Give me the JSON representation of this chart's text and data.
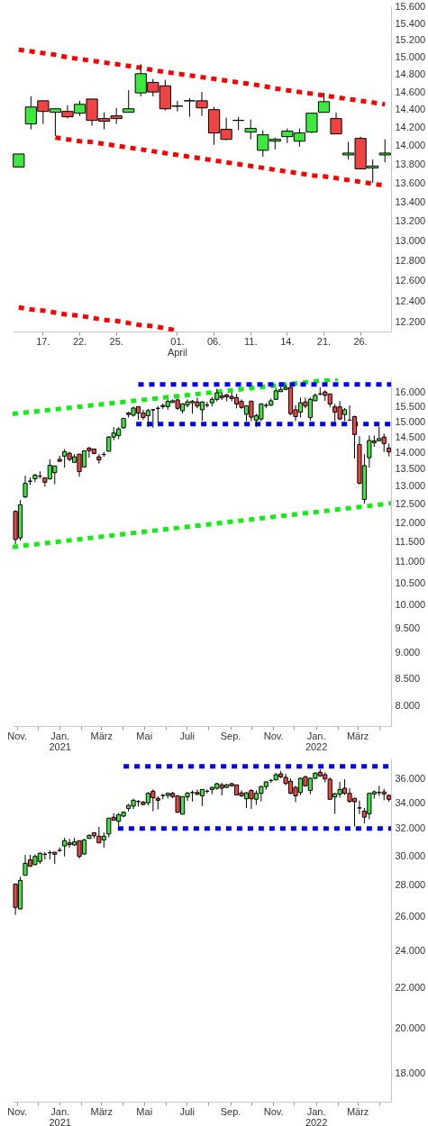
{
  "chart_data": [
    {
      "type": "candlestick",
      "categories": [
        null,
        null,
        "17.",
        null,
        null,
        "22.",
        null,
        null,
        "25.",
        null,
        null,
        null,
        null,
        "01.\nApril",
        null,
        null,
        "06.",
        null,
        null,
        "11.",
        null,
        null,
        "14.",
        null,
        null,
        "21.",
        null,
        null,
        "26.",
        null,
        null
      ],
      "ohlc": [
        [
          13770,
          13910,
          13770,
          13910
        ],
        [
          14240,
          14550,
          14180,
          14430
        ],
        [
          14500,
          14500,
          14240,
          14380
        ],
        [
          14370,
          14410,
          14110,
          14410
        ],
        [
          14380,
          14450,
          14300,
          14320
        ],
        [
          14360,
          14500,
          14330,
          14460
        ],
        [
          14520,
          14520,
          14220,
          14280
        ],
        [
          14300,
          14370,
          14180,
          14270
        ],
        [
          14330,
          14420,
          14240,
          14300
        ],
        [
          14370,
          14620,
          14370,
          14410
        ],
        [
          14590,
          14920,
          14550,
          14810
        ],
        [
          14710,
          14750,
          14550,
          14600
        ],
        [
          14670,
          14740,
          14390,
          14410
        ],
        [
          14440,
          14500,
          14380,
          14440
        ],
        [
          14500,
          14530,
          14320,
          14500
        ],
        [
          14500,
          14600,
          14330,
          14420
        ],
        [
          14400,
          14430,
          14010,
          14140
        ],
        [
          14180,
          14310,
          14060,
          14070
        ],
        [
          14280,
          14320,
          14170,
          14280
        ],
        [
          14150,
          14290,
          14070,
          14190
        ],
        [
          13950,
          14170,
          13880,
          14120
        ],
        [
          14050,
          14090,
          13960,
          14070
        ],
        [
          14100,
          14190,
          14030,
          14160
        ],
        [
          14050,
          14190,
          13990,
          14140
        ],
        [
          14150,
          14360,
          14140,
          14360
        ],
        [
          14370,
          14590,
          14370,
          14490
        ],
        [
          14300,
          14370,
          14130,
          14130
        ],
        [
          13900,
          14040,
          13850,
          13920
        ],
        [
          14080,
          14100,
          13750,
          13750
        ],
        [
          13760,
          13850,
          13600,
          13780
        ],
        [
          13900,
          14070,
          13820,
          13920
        ]
      ],
      "colors": [
        "#3ee83e",
        "#3ee83e",
        "#ee4444",
        "#3ee83e",
        "#ee4444",
        "#3ee83e",
        "#ee4444",
        "#ee4444",
        "#ee4444",
        "#3ee83e",
        "#3ee83e",
        "#ee4444",
        "#ee4444",
        "#000000",
        "#000000",
        "#ee4444",
        "#ee4444",
        "#ee4444",
        "#000000",
        "#3ee83e",
        "#3ee83e",
        "#3ee83e",
        "#3ee83e",
        "#3ee83e",
        "#3ee83e",
        "#3ee83e",
        "#ee4444",
        "#3ee83e",
        "#ee4444",
        "#3ee83e",
        "#3ee83e"
      ],
      "ylim": [
        12110,
        15610
      ],
      "yticks": [
        {
          "value": 12200,
          "label": "12.200"
        },
        {
          "value": 12400,
          "label": "12.400"
        },
        {
          "value": 12600,
          "label": "12.600"
        },
        {
          "value": 12800,
          "label": "12.800"
        },
        {
          "value": 13000,
          "label": "13.000"
        },
        {
          "value": 13200,
          "label": "13.200"
        },
        {
          "value": 13400,
          "label": "13.400"
        },
        {
          "value": 13600,
          "label": "13.600"
        },
        {
          "value": 13800,
          "label": "13.800"
        },
        {
          "value": 14000,
          "label": "14.000"
        },
        {
          "value": 14200,
          "label": "14.200"
        },
        {
          "value": 14400,
          "label": "14.400"
        },
        {
          "value": 14600,
          "label": "14.600"
        },
        {
          "value": 14800,
          "label": "14.800"
        },
        {
          "value": 15000,
          "label": "15.000"
        },
        {
          "value": 15200,
          "label": "15.200"
        },
        {
          "value": 15400,
          "label": "15.400"
        },
        {
          "value": 15600,
          "label": "15.600"
        }
      ],
      "log": true,
      "series": [
        {
          "type": "line",
          "values": [
            15090,
            15070,
            15050,
            15030,
            15000,
            14980,
            14960,
            14940,
            14920,
            14900,
            14880,
            14850,
            14830,
            14810,
            14790,
            14770,
            14750,
            14730,
            14710,
            14690,
            14670,
            14640,
            14620,
            14600,
            14580,
            14560,
            14540,
            14520,
            14500,
            14480,
            14460
          ],
          "color": "#ff0000",
          "line_style": "dotted"
        },
        {
          "type": "line",
          "values": [
            null,
            null,
            null,
            14090,
            14070,
            14050,
            14040,
            14020,
            14000,
            13980,
            13960,
            13940,
            13920,
            13900,
            13880,
            13860,
            13840,
            13820,
            13800,
            13780,
            13760,
            13740,
            13720,
            13700,
            13680,
            13670,
            13650,
            13630,
            13610,
            13590,
            13570
          ],
          "color": "#ff0000",
          "line_style": "dotted"
        },
        {
          "type": "line",
          "values": [
            12340,
            12320,
            12310,
            12290,
            12270,
            12260,
            12240,
            12220,
            12210,
            12190,
            12170,
            12160,
            12140,
            12120,
            null,
            null,
            null,
            null,
            null,
            null,
            null,
            null,
            null,
            null,
            null,
            null,
            null,
            null,
            null,
            null,
            null
          ],
          "color": "#ff0000",
          "line_style": "dotted"
        }
      ]
    },
    {
      "type": "candlestick",
      "x": [
        "2020-10-30",
        "2020-11-06",
        "2020-11-13",
        "2020-11-20",
        "2020-11-27",
        "2020-12-04",
        "2020-12-11",
        "2020-12-18",
        "2020-12-25",
        "2021-01-01",
        "2021-01-08",
        "2021-01-15",
        "2021-01-22",
        "2021-01-29",
        "2021-02-05",
        "2021-02-12",
        "2021-02-19",
        "2021-02-26",
        "2021-03-05",
        "2021-03-12",
        "2021-03-19",
        "2021-03-26",
        "2021-04-02",
        "2021-04-09",
        "2021-04-16",
        "2021-04-23",
        "2021-04-30",
        "2021-05-07",
        "2021-05-14",
        "2021-05-21",
        "2021-05-28",
        "2021-06-04",
        "2021-06-11",
        "2021-06-18",
        "2021-06-25",
        "2021-07-02",
        "2021-07-09",
        "2021-07-16",
        "2021-07-23",
        "2021-07-30",
        "2021-08-06",
        "2021-08-13",
        "2021-08-20",
        "2021-08-27",
        "2021-09-03",
        "2021-09-10",
        "2021-09-17",
        "2021-09-24",
        "2021-10-01",
        "2021-10-08",
        "2021-10-15",
        "2021-10-22",
        "2021-10-29",
        "2021-11-05",
        "2021-11-12",
        "2021-11-19",
        "2021-11-26",
        "2021-12-03",
        "2021-12-10",
        "2021-12-17",
        "2021-12-24",
        "2021-12-31",
        "2022-01-07",
        "2022-01-14",
        "2022-01-21",
        "2022-01-28",
        "2022-02-04",
        "2022-02-11",
        "2022-02-18",
        "2022-02-25",
        "2022-03-04",
        "2022-03-11",
        "2022-03-18",
        "2022-03-25",
        "2022-04-01",
        "2022-04-08",
        "2022-04-15"
      ],
      "ohlc": [
        [
          12300,
          12330,
          11440,
          11560
        ],
        [
          11600,
          12610,
          11530,
          12480
        ],
        [
          12700,
          13310,
          12670,
          13090
        ],
        [
          13150,
          13260,
          13040,
          13150
        ],
        [
          13220,
          13360,
          13120,
          13330
        ],
        [
          13300,
          13440,
          13220,
          13300
        ],
        [
          13250,
          13250,
          12990,
          13120
        ],
        [
          13220,
          13800,
          13190,
          13620
        ],
        [
          13400,
          13600,
          13060,
          13600
        ],
        [
          13800,
          13910,
          13740,
          13740
        ],
        [
          13900,
          14120,
          13550,
          14040
        ],
        [
          13990,
          14030,
          13740,
          13800
        ],
        [
          13710,
          13960,
          13690,
          13880
        ],
        [
          13960,
          13960,
          13280,
          13430
        ],
        [
          13570,
          14080,
          13550,
          14060
        ],
        [
          14150,
          14180,
          13850,
          14070
        ],
        [
          14120,
          14120,
          13960,
          13980
        ],
        [
          13880,
          13960,
          13670,
          13780
        ],
        [
          13950,
          14030,
          13880,
          13950
        ],
        [
          14050,
          14530,
          14040,
          14500
        ],
        [
          14500,
          14820,
          14400,
          14630
        ],
        [
          14550,
          14820,
          14430,
          14760
        ],
        [
          14800,
          15110,
          14770,
          15110
        ],
        [
          15290,
          15340,
          15140,
          15240
        ],
        [
          15220,
          15510,
          15170,
          15460
        ],
        [
          15510,
          15510,
          15070,
          15290
        ],
        [
          15290,
          15400,
          15070,
          15140
        ],
        [
          15200,
          15430,
          14820,
          15370
        ],
        [
          15400,
          15430,
          14800,
          15400
        ],
        [
          15450,
          15530,
          14970,
          15450
        ],
        [
          15510,
          15610,
          15430,
          15550
        ],
        [
          15510,
          15760,
          15400,
          15690
        ],
        [
          15650,
          15760,
          15640,
          15710
        ],
        [
          15740,
          15790,
          15400,
          15450
        ],
        [
          15370,
          15630,
          15270,
          15600
        ],
        [
          15560,
          15760,
          15480,
          15670
        ],
        [
          15640,
          15740,
          15270,
          15690
        ],
        [
          15670,
          15820,
          15450,
          15530
        ],
        [
          15400,
          15690,
          15030,
          15670
        ],
        [
          15560,
          15670,
          15480,
          15560
        ],
        [
          15640,
          15840,
          15510,
          15760
        ],
        [
          15760,
          16130,
          15690,
          15990
        ],
        [
          15890,
          16000,
          15740,
          15820
        ],
        [
          15920,
          15950,
          15690,
          15850
        ],
        [
          15860,
          16000,
          15690,
          15790
        ],
        [
          15820,
          15950,
          15450,
          15600
        ],
        [
          15690,
          15760,
          15430,
          15480
        ],
        [
          15250,
          15560,
          15020,
          15530
        ],
        [
          15700,
          15700,
          15020,
          15150
        ],
        [
          15050,
          15270,
          14820,
          15200
        ],
        [
          15090,
          15630,
          15020,
          15600
        ],
        [
          15550,
          15630,
          15450,
          15550
        ],
        [
          15560,
          15790,
          15530,
          15710
        ],
        [
          15760,
          16160,
          15740,
          16060
        ],
        [
          16030,
          16210,
          16030,
          16110
        ],
        [
          16110,
          16290,
          16080,
          16180
        ],
        [
          16180,
          16240,
          15220,
          15270
        ],
        [
          15400,
          15560,
          15020,
          15170
        ],
        [
          15320,
          15820,
          15140,
          15640
        ],
        [
          15670,
          15820,
          15450,
          15530
        ],
        [
          15140,
          15820,
          15030,
          15760
        ],
        [
          15710,
          15970,
          15710,
          15900
        ],
        [
          15950,
          16180,
          15900,
          15950
        ],
        [
          16020,
          16080,
          15710,
          15900
        ],
        [
          15950,
          15950,
          15480,
          15600
        ],
        [
          15500,
          15600,
          15000,
          15320
        ],
        [
          15500,
          15700,
          15050,
          15090
        ],
        [
          15240,
          15460,
          15020,
          15400
        ],
        [
          15050,
          15550,
          15050,
          15050
        ],
        [
          15170,
          15200,
          13830,
          14580
        ],
        [
          14260,
          14530,
          13060,
          13090
        ],
        [
          12630,
          13960,
          12510,
          13610
        ],
        [
          13850,
          14550,
          13550,
          14390
        ],
        [
          14380,
          14550,
          14190,
          14320
        ],
        [
          14380,
          14840,
          14370,
          14450
        ],
        [
          14500,
          14610,
          14030,
          14290
        ],
        [
          14150,
          14290,
          13890,
          14030
        ]
      ],
      "colors": [
        "#ee4444",
        "#3ee83e",
        "#3ee83e",
        "#000000",
        "#3ee83e",
        "#000000",
        "#ee4444",
        "#3ee83e",
        "#3ee83e",
        "#ee4444",
        "#3ee83e",
        "#ee4444",
        "#3ee83e",
        "#ee4444",
        "#3ee83e",
        "#ee4444",
        "#ee4444",
        "#ee4444",
        "#000000",
        "#3ee83e",
        "#3ee83e",
        "#3ee83e",
        "#3ee83e",
        "#ee4444",
        "#3ee83e",
        "#ee4444",
        "#ee4444",
        "#3ee83e",
        "#000000",
        "#000000",
        "#3ee83e",
        "#3ee83e",
        "#3ee83e",
        "#ee4444",
        "#3ee83e",
        "#3ee83e",
        "#3ee83e",
        "#ee4444",
        "#3ee83e",
        "#000000",
        "#3ee83e",
        "#3ee83e",
        "#ee4444",
        "#ee4444",
        "#ee4444",
        "#ee4444",
        "#ee4444",
        "#3ee83e",
        "#ee4444",
        "#3ee83e",
        "#3ee83e",
        "#000000",
        "#3ee83e",
        "#3ee83e",
        "#3ee83e",
        "#3ee83e",
        "#ee4444",
        "#ee4444",
        "#3ee83e",
        "#ee4444",
        "#3ee83e",
        "#3ee83e",
        "#000000",
        "#ee4444",
        "#ee4444",
        "#ee4444",
        "#ee4444",
        "#3ee83e",
        "#000000",
        "#ee4444",
        "#ee4444",
        "#3ee83e",
        "#3ee83e",
        "#ee4444",
        "#3ee83e",
        "#ee4444",
        "#ee4444"
      ],
      "xlim": [
        "2020-10-26",
        "2022-04-18"
      ],
      "xticks": [
        {
          "value": "2020-11-01",
          "label": "Nov."
        },
        {
          "value": "2020-12-01",
          "label": null
        },
        {
          "value": "2021-01-01",
          "label": "Jan.\n2021"
        },
        {
          "value": "2021-02-01",
          "label": null
        },
        {
          "value": "2021-03-01",
          "label": "März"
        },
        {
          "value": "2021-04-01",
          "label": null
        },
        {
          "value": "2021-05-01",
          "label": "Mai"
        },
        {
          "value": "2021-06-01",
          "label": null
        },
        {
          "value": "2021-07-01",
          "label": "Juli"
        },
        {
          "value": "2021-08-01",
          "label": null
        },
        {
          "value": "2021-09-01",
          "label": "Sep."
        },
        {
          "value": "2021-10-01",
          "label": null
        },
        {
          "value": "2021-11-01",
          "label": "Nov."
        },
        {
          "value": "2021-12-01",
          "label": null
        },
        {
          "value": "2022-01-01",
          "label": "Jan.\n2022"
        },
        {
          "value": "2022-02-01",
          "label": null
        },
        {
          "value": "2022-03-01",
          "label": "März"
        },
        {
          "value": "2022-04-01",
          "label": null
        }
      ],
      "ylim": [
        7650,
        16510
      ],
      "yticks": [
        {
          "value": 8000,
          "label": "8.000"
        },
        {
          "value": 8500,
          "label": "8.500"
        },
        {
          "value": 9000,
          "label": "9.000"
        },
        {
          "value": 9500,
          "label": "9.500"
        },
        {
          "value": 10000,
          "label": "10.000"
        },
        {
          "value": 10500,
          "label": "10.500"
        },
        {
          "value": 11000,
          "label": "11.000"
        },
        {
          "value": 11500,
          "label": "11.500"
        },
        {
          "value": 12000,
          "label": "12.000"
        },
        {
          "value": 12500,
          "label": "12.500"
        },
        {
          "value": 13000,
          "label": "13.000"
        },
        {
          "value": 13500,
          "label": "13.500"
        },
        {
          "value": 14000,
          "label": "14.000"
        },
        {
          "value": 14500,
          "label": "14.500"
        },
        {
          "value": 15000,
          "label": "15.000"
        },
        {
          "value": 15500,
          "label": "15.500"
        },
        {
          "value": 16000,
          "label": "16.000"
        }
      ],
      "log": true,
      "series": [
        {
          "type": "line",
          "x": [
            "2020-10-26",
            "2022-02-01"
          ],
          "values": [
            15260,
            16490
          ],
          "color": "#11ee11",
          "line_style": "dotted"
        },
        {
          "type": "line",
          "x": [
            "2020-10-26",
            "2022-04-18"
          ],
          "values": [
            11370,
            12520
          ],
          "color": "#11ee11",
          "line_style": "dotted"
        },
        {
          "type": "line",
          "x": [
            "2021-04-23",
            "2022-04-18"
          ],
          "values": [
            16290,
            16290
          ],
          "color": "#0000ff",
          "line_style": "dotted"
        },
        {
          "type": "line",
          "x": [
            "2021-04-20",
            "2022-04-18"
          ],
          "values": [
            14920,
            14920
          ],
          "color": "#0000ff",
          "line_style": "dotted"
        }
      ]
    },
    {
      "type": "candlestick",
      "x": [
        "2020-10-30",
        "2020-11-06",
        "2020-11-13",
        "2020-11-20",
        "2020-11-27",
        "2020-12-04",
        "2020-12-11",
        "2020-12-18",
        "2020-12-25",
        "2021-01-01",
        "2021-01-08",
        "2021-01-15",
        "2021-01-22",
        "2021-01-29",
        "2021-02-05",
        "2021-02-12",
        "2021-02-19",
        "2021-02-26",
        "2021-03-05",
        "2021-03-12",
        "2021-03-19",
        "2021-03-26",
        "2021-04-02",
        "2021-04-09",
        "2021-04-16",
        "2021-04-23",
        "2021-04-30",
        "2021-05-07",
        "2021-05-14",
        "2021-05-21",
        "2021-05-28",
        "2021-06-04",
        "2021-06-11",
        "2021-06-18",
        "2021-06-25",
        "2021-07-02",
        "2021-07-09",
        "2021-07-16",
        "2021-07-23",
        "2021-07-30",
        "2021-08-06",
        "2021-08-13",
        "2021-08-20",
        "2021-08-27",
        "2021-09-03",
        "2021-09-10",
        "2021-09-17",
        "2021-09-24",
        "2021-10-01",
        "2021-10-08",
        "2021-10-15",
        "2021-10-22",
        "2021-10-29",
        "2021-11-05",
        "2021-11-12",
        "2021-11-19",
        "2021-11-26",
        "2021-12-03",
        "2021-12-10",
        "2021-12-17",
        "2021-12-24",
        "2021-12-31",
        "2022-01-07",
        "2022-01-14",
        "2022-01-21",
        "2022-01-28",
        "2022-02-04",
        "2022-02-11",
        "2022-02-18",
        "2022-02-25",
        "2022-03-04",
        "2022-03-11",
        "2022-03-18",
        "2022-03-25",
        "2022-04-01",
        "2022-04-08",
        "2022-04-15"
      ],
      "ohlc": [
        [
          28080,
          28080,
          26110,
          26580
        ],
        [
          26480,
          28560,
          26460,
          28320
        ],
        [
          28660,
          30070,
          28640,
          29480
        ],
        [
          29720,
          30070,
          29250,
          29270
        ],
        [
          29390,
          30110,
          29340,
          29960
        ],
        [
          29610,
          30250,
          29440,
          30180
        ],
        [
          30110,
          30280,
          29740,
          30110
        ],
        [
          30220,
          30390,
          29750,
          30220
        ],
        [
          30260,
          30260,
          29440,
          30110
        ],
        [
          30390,
          30600,
          30280,
          30390
        ],
        [
          30710,
          31300,
          29960,
          31090
        ],
        [
          30930,
          31220,
          30590,
          30800
        ],
        [
          30780,
          31300,
          30710,
          31000
        ],
        [
          31090,
          31090,
          29820,
          29960
        ],
        [
          30130,
          31220,
          30070,
          31150
        ],
        [
          31260,
          31550,
          31220,
          31480
        ],
        [
          31680,
          31680,
          31260,
          31460
        ],
        [
          31420,
          32110,
          30930,
          30930
        ],
        [
          31150,
          31700,
          30590,
          31420
        ],
        [
          31580,
          32780,
          31330,
          32780
        ],
        [
          32850,
          33170,
          32630,
          32630
        ],
        [
          32540,
          33170,
          32150,
          33050
        ],
        [
          32940,
          33310,
          32850,
          33240
        ],
        [
          33540,
          33900,
          33310,
          33780
        ],
        [
          33730,
          34320,
          33490,
          34190
        ],
        [
          34090,
          34210,
          33680,
          34090
        ],
        [
          34040,
          34140,
          33780,
          33850
        ],
        [
          33990,
          34870,
          33780,
          34750
        ],
        [
          34920,
          35070,
          33310,
          34390
        ],
        [
          34340,
          34510,
          33460,
          34190
        ],
        [
          34580,
          34700,
          34270,
          34580
        ],
        [
          34580,
          34820,
          34340,
          34750
        ],
        [
          34750,
          34870,
          34340,
          34490
        ],
        [
          34550,
          34550,
          33230,
          33230
        ],
        [
          33090,
          34490,
          33070,
          34490
        ],
        [
          34460,
          34870,
          34140,
          34770
        ],
        [
          34820,
          34990,
          34090,
          34820
        ],
        [
          34820,
          35070,
          34620,
          34670
        ],
        [
          34550,
          35070,
          33730,
          35070
        ],
        [
          34920,
          35070,
          34750,
          34920
        ],
        [
          35070,
          35290,
          34680,
          35240
        ],
        [
          35170,
          35620,
          35050,
          35550
        ],
        [
          35450,
          35620,
          34580,
          35170
        ],
        [
          35240,
          35550,
          35170,
          35450
        ],
        [
          35550,
          35620,
          35310,
          35370
        ],
        [
          35450,
          35450,
          34580,
          34620
        ],
        [
          34790,
          34990,
          34460,
          34550
        ],
        [
          34310,
          34870,
          33560,
          34790
        ],
        [
          34990,
          35070,
          33490,
          34310
        ],
        [
          34270,
          34990,
          33830,
          34750
        ],
        [
          34750,
          35370,
          34090,
          35310
        ],
        [
          35310,
          35750,
          35050,
          35700
        ],
        [
          35820,
          35920,
          35620,
          35820
        ],
        [
          35870,
          36460,
          35820,
          36310
        ],
        [
          36380,
          36640,
          36000,
          36130
        ],
        [
          36080,
          36380,
          35420,
          35570
        ],
        [
          35750,
          36000,
          34680,
          34750
        ],
        [
          35240,
          35370,
          34040,
          34550
        ],
        [
          34820,
          36080,
          34620,
          36000
        ],
        [
          36130,
          36210,
          35310,
          35370
        ],
        [
          34990,
          36080,
          34680,
          36000
        ],
        [
          36000,
          36520,
          35920,
          36440
        ],
        [
          36520,
          36770,
          36130,
          36210
        ],
        [
          36310,
          36520,
          35670,
          35950
        ],
        [
          35920,
          36080,
          34270,
          34270
        ],
        [
          34460,
          34790,
          33110,
          34720
        ],
        [
          34680,
          35700,
          34400,
          35070
        ],
        [
          35170,
          35920,
          34620,
          34750
        ],
        [
          34750,
          35170,
          33990,
          34090
        ],
        [
          34340,
          34390,
          32150,
          34070
        ],
        [
          33580,
          34170,
          33090,
          33580
        ],
        [
          33320,
          33580,
          32380,
          32860
        ],
        [
          33120,
          34790,
          32700,
          34750
        ],
        [
          34700,
          34990,
          34320,
          34870
        ],
        [
          34820,
          35370,
          34550,
          34820
        ],
        [
          34870,
          35120,
          34190,
          34700
        ],
        [
          34580,
          34680,
          34070,
          34270
        ]
      ],
      "colors": [
        "#ee4444",
        "#3ee83e",
        "#3ee83e",
        "#ee4444",
        "#3ee83e",
        "#3ee83e",
        "#000000",
        "#000000",
        "#ee4444",
        "#000000",
        "#3ee83e",
        "#ee4444",
        "#3ee83e",
        "#ee4444",
        "#3ee83e",
        "#3ee83e",
        "#ee4444",
        "#ee4444",
        "#3ee83e",
        "#3ee83e",
        "#ee4444",
        "#3ee83e",
        "#3ee83e",
        "#3ee83e",
        "#3ee83e",
        "#000000",
        "#ee4444",
        "#3ee83e",
        "#ee4444",
        "#ee4444",
        "#000000",
        "#3ee83e",
        "#ee4444",
        "#ee4444",
        "#3ee83e",
        "#3ee83e",
        "#000000",
        "#ee4444",
        "#3ee83e",
        "#000000",
        "#3ee83e",
        "#3ee83e",
        "#ee4444",
        "#3ee83e",
        "#ee4444",
        "#ee4444",
        "#ee4444",
        "#3ee83e",
        "#ee4444",
        "#3ee83e",
        "#3ee83e",
        "#3ee83e",
        "#000000",
        "#3ee83e",
        "#ee4444",
        "#ee4444",
        "#ee4444",
        "#ee4444",
        "#3ee83e",
        "#ee4444",
        "#3ee83e",
        "#3ee83e",
        "#ee4444",
        "#ee4444",
        "#ee4444",
        "#3ee83e",
        "#3ee83e",
        "#ee4444",
        "#ee4444",
        "#ee4444",
        "#000000",
        "#ee4444",
        "#3ee83e",
        "#3ee83e",
        "#000000",
        "#ee4444",
        "#ee4444"
      ],
      "xlim": [
        "2020-10-26",
        "2022-04-18"
      ],
      "xticks": [
        {
          "value": "2020-11-01",
          "label": "Nov."
        },
        {
          "value": "2020-12-01",
          "label": null
        },
        {
          "value": "2021-01-01",
          "label": "Jan.\n2021"
        },
        {
          "value": "2021-02-01",
          "label": null
        },
        {
          "value": "2021-03-01",
          "label": "März"
        },
        {
          "value": "2021-04-01",
          "label": null
        },
        {
          "value": "2021-05-01",
          "label": "Mai"
        },
        {
          "value": "2021-06-01",
          "label": null
        },
        {
          "value": "2021-07-01",
          "label": "Juli"
        },
        {
          "value": "2021-08-01",
          "label": null
        },
        {
          "value": "2021-09-01",
          "label": "Sep."
        },
        {
          "value": "2021-10-01",
          "label": null
        },
        {
          "value": "2021-11-01",
          "label": "Nov."
        },
        {
          "value": "2021-12-01",
          "label": null
        },
        {
          "value": "2022-01-01",
          "label": "Jan.\n2022"
        },
        {
          "value": "2022-02-01",
          "label": null
        },
        {
          "value": "2022-03-01",
          "label": "März"
        },
        {
          "value": "2022-04-01",
          "label": null
        }
      ],
      "ylim": [
        16830,
        37720
      ],
      "yticks": [
        {
          "value": 18000,
          "label": "18.000"
        },
        {
          "value": 20000,
          "label": "20.000"
        },
        {
          "value": 22000,
          "label": "22.000"
        },
        {
          "value": 24000,
          "label": "24.000"
        },
        {
          "value": 26000,
          "label": "26.000"
        },
        {
          "value": 28000,
          "label": "28.000"
        },
        {
          "value": 30000,
          "label": "30.000"
        },
        {
          "value": 32000,
          "label": "32.000"
        },
        {
          "value": 34000,
          "label": "34.000"
        },
        {
          "value": 36000,
          "label": "36.000"
        }
      ],
      "log": true,
      "series": [
        {
          "type": "line",
          "x": [
            "2021-04-02",
            "2022-04-18"
          ],
          "values": [
            37030,
            37030
          ],
          "color": "#0000ff",
          "line_style": "dotted"
        },
        {
          "type": "line",
          "x": [
            "2021-03-25",
            "2022-04-18"
          ],
          "values": [
            32000,
            32000
          ],
          "color": "#0000ff",
          "line_style": "dotted"
        }
      ]
    }
  ]
}
